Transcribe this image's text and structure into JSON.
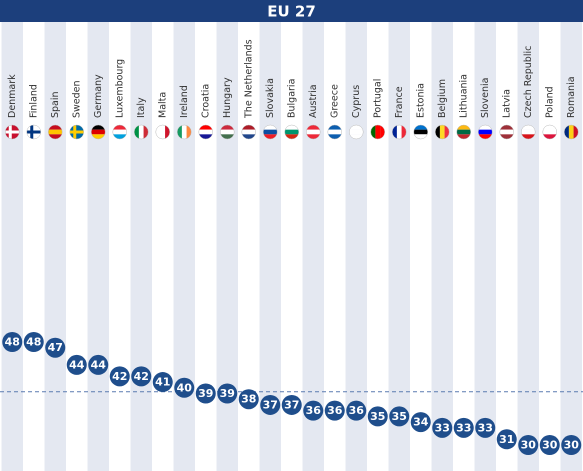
{
  "chart_data": {
    "type": "dot",
    "title": "EU 27",
    "categories": [
      "Denmark",
      "Finland",
      "Spain",
      "Sweden",
      "Germany",
      "Luxembourg",
      "Italy",
      "Malta",
      "Ireland",
      "Croatia",
      "Hungary",
      "The Netherlands",
      "Slovakia",
      "Bulgaria",
      "Austria",
      "Greece",
      "Cyprus",
      "Portugal",
      "France",
      "Estonia",
      "Belgium",
      "Lithuania",
      "Slovenia",
      "Latvia",
      "Czech Republic",
      "Poland",
      "Romania"
    ],
    "values": [
      48,
      48,
      47,
      44,
      44,
      42,
      42,
      41,
      40,
      39,
      39,
      38,
      37,
      37,
      36,
      36,
      36,
      35,
      35,
      34,
      33,
      33,
      33,
      31,
      30,
      30,
      30
    ],
    "color": "#1f4e8c",
    "reference_line": 39.3
  }
}
